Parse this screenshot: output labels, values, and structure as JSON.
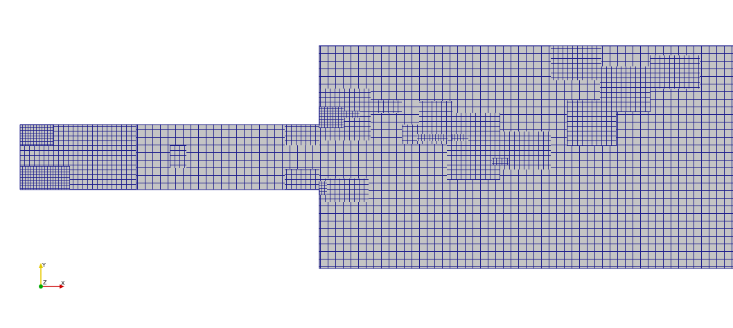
{
  "view": {
    "background": "#ffffff",
    "mesh_fill": "#c4c4c4",
    "mesh_edge_color": "#1c1c8c"
  },
  "mesh": {
    "regions": [
      "inlet-channel",
      "expansion-chamber"
    ],
    "description_labels": []
  },
  "axes_triad": {
    "y_label": "Y",
    "x_label": "X",
    "z_label": "Z",
    "y_color": "#e5c800",
    "x_color": "#cc0000",
    "z_color": "#00aa00"
  }
}
